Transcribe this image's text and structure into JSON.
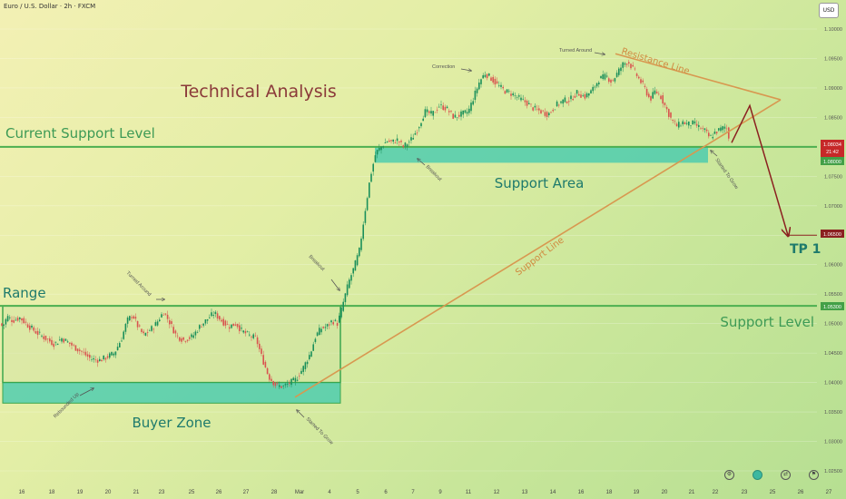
{
  "header": {
    "symbol_title": "Euro / U.S. Dollar · 2h · FXCM",
    "currency": "USD"
  },
  "annotations": {
    "technical_analysis": "Technical Analysis",
    "current_support_level": "Current Support Level",
    "support_area": "Support Area",
    "support_level": "Support Level",
    "range": "Range",
    "buyer_zone": "Buyer Zone",
    "tp1": "TP 1",
    "resistance_line": "Resistance Line",
    "support_line": "Support Line",
    "turned_around_1": "Turned Around",
    "turned_around_2": "Turned Around",
    "correction": "Correction",
    "breakout_1": "Breakout",
    "breakout_2": "Breakout",
    "rebounded_up": "Rebounded Up",
    "started_to_grow_1": "Started To Grow",
    "started_to_grow_2": "Started To Grow"
  },
  "colors": {
    "green_line": "#4caf50",
    "zone_fill": "#3cc8b0",
    "orange_line": "#d89850",
    "arrow_red": "#8b2020",
    "title_red": "#8b3a3a",
    "candle_up": "#1a8f5a",
    "candle_down": "#d9534f",
    "text_green": "#3d9a55",
    "tp_label": "#8b2a2a",
    "label_text": "#555555"
  },
  "price_labels": {
    "current": "1.08034",
    "countdown": "21:42",
    "support_area": "1.08000",
    "tp": "1.06500",
    "support_level": "1.05300"
  },
  "chart_data": {
    "type": "candlestick",
    "title": "Euro / U.S. Dollar · 2h · FXCM",
    "ylim": [
      1.023,
      1.1035
    ],
    "y_ticks": [
      "1.10000",
      "1.09500",
      "1.09000",
      "1.08500",
      "1.08000",
      "1.07500",
      "1.07000",
      "1.06500",
      "1.06000",
      "1.05500",
      "1.05000",
      "1.04500",
      "1.04000",
      "1.03500",
      "1.03000",
      "1.02500"
    ],
    "x_ticks": [
      "16",
      "18",
      "19",
      "20",
      "21",
      "23",
      "25",
      "26",
      "27",
      "28",
      "Mar",
      "4",
      "5",
      "6",
      "7",
      "9",
      "11",
      "12",
      "13",
      "14",
      "16",
      "18",
      "19",
      "20",
      "21",
      "22",
      "23",
      "25",
      "26",
      "27"
    ],
    "price_path": [
      [
        0,
        1.05
      ],
      [
        3,
        1.0495
      ],
      [
        8,
        1.0512
      ],
      [
        14,
        1.0505
      ],
      [
        22,
        1.051
      ],
      [
        30,
        1.0498
      ],
      [
        40,
        1.0485
      ],
      [
        50,
        1.0475
      ],
      [
        60,
        1.0465
      ],
      [
        68,
        1.0475
      ],
      [
        75,
        1.0468
      ],
      [
        82,
        1.046
      ],
      [
        90,
        1.0452
      ],
      [
        100,
        1.044
      ],
      [
        110,
        1.0438
      ],
      [
        116,
        1.0442
      ],
      [
        126,
        1.045
      ],
      [
        134,
        1.0475
      ],
      [
        140,
        1.0505
      ],
      [
        146,
        1.0515
      ],
      [
        152,
        1.0495
      ],
      [
        158,
        1.048
      ],
      [
        166,
        1.049
      ],
      [
        172,
        1.05
      ],
      [
        180,
        1.052
      ],
      [
        186,
        1.0505
      ],
      [
        194,
        1.048
      ],
      [
        202,
        1.0472
      ],
      [
        212,
        1.0478
      ],
      [
        220,
        1.0495
      ],
      [
        230,
        1.051
      ],
      [
        236,
        1.0518
      ],
      [
        244,
        1.0505
      ],
      [
        252,
        1.0495
      ],
      [
        260,
        1.05
      ],
      [
        266,
        1.0488
      ],
      [
        274,
        1.048
      ],
      [
        282,
        1.0475
      ],
      [
        288,
        1.0445
      ],
      [
        296,
        1.041
      ],
      [
        304,
        1.0395
      ],
      [
        312,
        1.0393
      ],
      [
        320,
        1.04
      ],
      [
        326,
        1.0405
      ],
      [
        334,
        1.0425
      ],
      [
        342,
        1.045
      ],
      [
        348,
        1.048
      ],
      [
        354,
        1.0492
      ],
      [
        360,
        1.0495
      ],
      [
        366,
        1.0505
      ],
      [
        372,
        1.05
      ],
      [
        378,
        1.0535
      ],
      [
        384,
        1.057
      ],
      [
        390,
        1.0595
      ],
      [
        396,
        1.0625
      ],
      [
        402,
        1.069
      ],
      [
        408,
        1.075
      ],
      [
        414,
        1.079
      ],
      [
        420,
        1.08
      ],
      [
        426,
        1.081
      ],
      [
        432,
        1.0808
      ],
      [
        438,
        1.0812
      ],
      [
        444,
        1.08
      ],
      [
        452,
        1.081
      ],
      [
        460,
        1.083
      ],
      [
        468,
        1.086
      ],
      [
        476,
        1.0855
      ],
      [
        484,
        1.087
      ],
      [
        492,
        1.0865
      ],
      [
        500,
        1.085
      ],
      [
        508,
        1.0855
      ],
      [
        516,
        1.086
      ],
      [
        522,
        1.0885
      ],
      [
        528,
        1.091
      ],
      [
        534,
        1.0925
      ],
      [
        540,
        1.0918
      ],
      [
        548,
        1.0905
      ],
      [
        556,
        1.0895
      ],
      [
        564,
        1.089
      ],
      [
        572,
        1.0882
      ],
      [
        580,
        1.0875
      ],
      [
        588,
        1.0865
      ],
      [
        596,
        1.086
      ],
      [
        604,
        1.0855
      ],
      [
        612,
        1.087
      ],
      [
        620,
        1.0878
      ],
      [
        628,
        1.088
      ],
      [
        636,
        1.0892
      ],
      [
        644,
        1.0885
      ],
      [
        652,
        1.0895
      ],
      [
        660,
        1.0915
      ],
      [
        668,
        1.092
      ],
      [
        674,
        1.091
      ],
      [
        680,
        1.0925
      ],
      [
        686,
        1.094
      ],
      [
        692,
        1.0945
      ],
      [
        698,
        1.093
      ],
      [
        704,
        1.0915
      ],
      [
        710,
        1.09
      ],
      [
        716,
        1.088
      ],
      [
        722,
        1.0895
      ],
      [
        728,
        1.0885
      ],
      [
        734,
        1.0865
      ],
      [
        740,
        1.0845
      ],
      [
        746,
        1.0835
      ],
      [
        752,
        1.0842
      ],
      [
        758,
        1.0838
      ],
      [
        764,
        1.084
      ],
      [
        770,
        1.0833
      ],
      [
        776,
        1.0828
      ],
      [
        782,
        1.0815
      ],
      [
        788,
        1.0825
      ],
      [
        794,
        1.083
      ],
      [
        800,
        1.0835
      ],
      [
        805,
        1.0803
      ]
    ],
    "series": [
      {
        "name": "Current Support Level",
        "kind": "horizontal",
        "value": 1.08
      },
      {
        "name": "Support Level",
        "kind": "horizontal",
        "value": 1.053
      },
      {
        "name": "TP 1",
        "kind": "horizontal",
        "value": 1.065
      },
      {
        "name": "Support Line",
        "kind": "trendline",
        "points": [
          [
            325,
            1.0375
          ],
          [
            860,
            1.088
          ]
        ]
      },
      {
        "name": "Resistance Line",
        "kind": "trendline",
        "points": [
          [
            678,
            1.0958
          ],
          [
            860,
            1.088
          ]
        ]
      },
      {
        "name": "Projection",
        "kind": "path",
        "points": [
          [
            806,
            1.0807
          ],
          [
            826,
            1.087
          ],
          [
            868,
            1.065
          ]
        ]
      }
    ],
    "zones": [
      {
        "name": "Range",
        "x": [
          3,
          375
        ],
        "y": [
          1.04,
          1.053
        ]
      },
      {
        "name": "Buyer Zone",
        "x": [
          3,
          375
        ],
        "y": [
          1.0365,
          1.04
        ]
      },
      {
        "name": "Support Area",
        "x": [
          413,
          780
        ],
        "y": [
          1.0773,
          1.08
        ]
      }
    ]
  }
}
